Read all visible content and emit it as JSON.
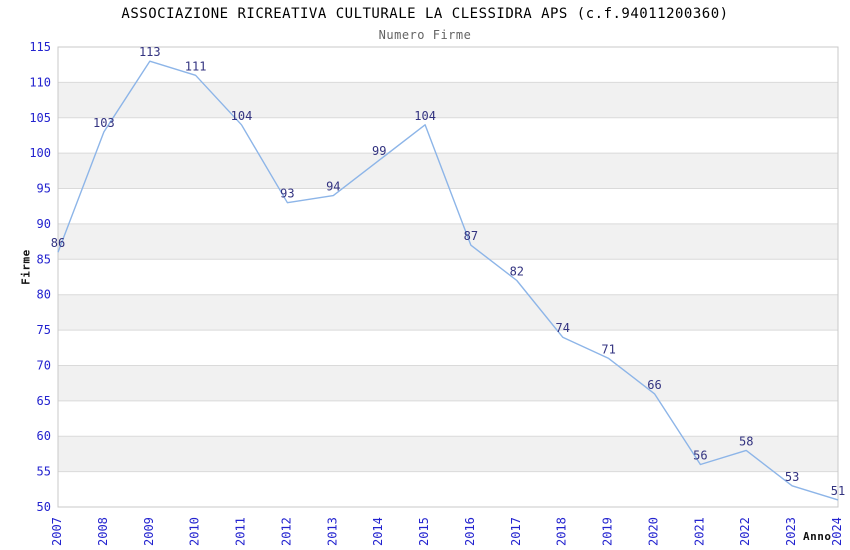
{
  "chart_data": {
    "type": "line",
    "title": "ASSOCIAZIONE RICREATIVA CULTURALE LA CLESSIDRA APS (c.f.94011200360)",
    "subtitle": "Numero Firme",
    "xlabel": "Anno",
    "ylabel": "Firme",
    "categories": [
      "2007",
      "2008",
      "2009",
      "2010",
      "2011",
      "2012",
      "2013",
      "2014",
      "2015",
      "2016",
      "2017",
      "2018",
      "2019",
      "2020",
      "2021",
      "2022",
      "2023",
      "2024"
    ],
    "series": [
      {
        "name": "Numero Firme",
        "values": [
          86,
          103,
          113,
          111,
          104,
          93,
          94,
          99,
          104,
          87,
          82,
          74,
          71,
          66,
          56,
          58,
          53,
          51
        ]
      }
    ],
    "ylim": [
      50,
      115
    ],
    "ytick_step": 5,
    "grid": "horizontal-bands-alternating",
    "legend": "none",
    "point_labels": true,
    "x_tick_rotation": -90,
    "colors": {
      "line": "#8db5e8",
      "tick_label": "#2323cf",
      "value_label": "#333380",
      "band": "#f1f1f1",
      "gridline": "#dadada",
      "plot_border": "#c9c9c9",
      "title": "#000000",
      "subtitle": "#636363",
      "axis_title": "#111111",
      "background": "#ffffff"
    }
  }
}
